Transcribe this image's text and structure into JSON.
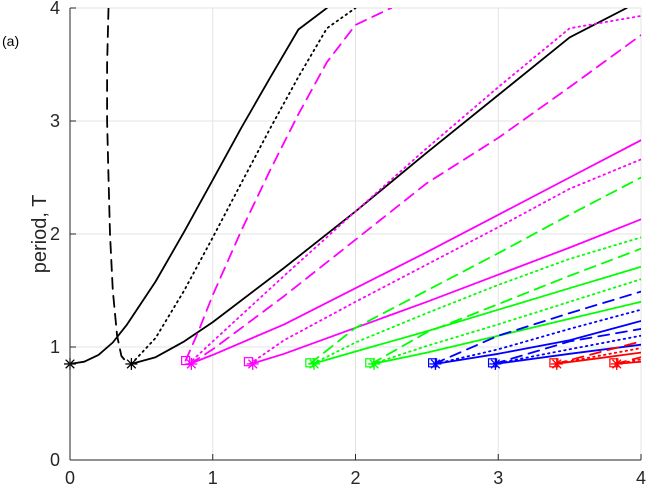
{
  "chart_data": {
    "type": "line",
    "panel_label": "(a)",
    "ylabel": "period, T",
    "xlabel": "",
    "xlim": [
      0,
      4
    ],
    "ylim": [
      0,
      4
    ],
    "x_ticks": [
      0,
      1,
      2,
      3,
      4
    ],
    "y_ticks": [
      0,
      1,
      2,
      3,
      4
    ],
    "grid": true,
    "legend": "none",
    "colors": {
      "black": "#000000",
      "magenta": "#ff00ff",
      "green": "#00ff00",
      "blue": "#0000ff",
      "red": "#ff0000"
    },
    "series": [
      {
        "color": "black",
        "style": "solid",
        "x": [
          0,
          0.1,
          0.2,
          0.3,
          0.4,
          0.6,
          0.8,
          1.0,
          1.2,
          1.4,
          1.6,
          1.8
        ],
        "y": [
          0.85,
          0.87,
          0.93,
          1.04,
          1.2,
          1.58,
          2.02,
          2.48,
          2.94,
          3.38,
          3.81,
          4.0
        ]
      },
      {
        "color": "black",
        "style": "dashed",
        "x": [
          0.27,
          0.26,
          0.26,
          0.27,
          0.28,
          0.3,
          0.33,
          0.36,
          0.4
        ],
        "y": [
          4.0,
          3.5,
          3.0,
          2.5,
          2.0,
          1.5,
          1.1,
          0.92,
          0.86
        ]
      },
      {
        "color": "black",
        "style": "dotted",
        "x": [
          0.43,
          0.6,
          0.8,
          1.0,
          1.2,
          1.4,
          1.6,
          1.8,
          2.0
        ],
        "y": [
          0.85,
          1.08,
          1.5,
          1.97,
          2.45,
          2.93,
          3.39,
          3.82,
          4.0
        ]
      },
      {
        "color": "black",
        "style": "solid",
        "x": [
          0.43,
          0.6,
          0.8,
          1.0,
          1.5,
          2.0,
          2.5,
          3.0,
          3.5,
          3.9
        ],
        "y": [
          0.85,
          0.91,
          1.05,
          1.22,
          1.7,
          2.2,
          2.72,
          3.23,
          3.74,
          4.0
        ]
      },
      {
        "color": "magenta",
        "style": "dashed",
        "x": [
          0.81,
          0.9,
          1.0,
          1.2,
          1.4,
          1.6,
          1.8,
          2.0,
          2.25
        ],
        "y": [
          0.88,
          1.14,
          1.46,
          2.03,
          2.56,
          3.06,
          3.52,
          3.85,
          4.0
        ]
      },
      {
        "color": "magenta",
        "style": "dotted",
        "x": [
          0.83,
          1.0,
          1.5,
          2.0,
          2.5,
          3.0,
          3.5,
          4.0
        ],
        "y": [
          0.85,
          1.05,
          1.63,
          2.2,
          2.76,
          3.3,
          3.82,
          3.93
        ]
      },
      {
        "color": "magenta",
        "style": "dashed",
        "x": [
          0.84,
          1.0,
          1.5,
          2.0,
          2.5,
          3.0,
          3.5,
          4.0
        ],
        "y": [
          0.85,
          0.98,
          1.45,
          1.95,
          2.45,
          2.85,
          3.3,
          3.76
        ]
      },
      {
        "color": "magenta",
        "style": "solid",
        "x": [
          0.84,
          1.0,
          1.5,
          2.0,
          2.5,
          3.0,
          3.5,
          4.0
        ],
        "y": [
          0.85,
          0.93,
          1.2,
          1.52,
          1.84,
          2.17,
          2.5,
          2.83
        ]
      },
      {
        "color": "magenta",
        "style": "dotted",
        "x": [
          1.26,
          1.5,
          2.0,
          2.5,
          3.0,
          3.5,
          4.0
        ],
        "y": [
          0.85,
          1.06,
          1.4,
          1.73,
          2.06,
          2.4,
          2.66
        ]
      },
      {
        "color": "magenta",
        "style": "solid",
        "x": [
          1.27,
          1.5,
          2.0,
          2.5,
          3.0,
          3.5,
          4.0
        ],
        "y": [
          0.85,
          0.94,
          1.17,
          1.4,
          1.64,
          1.88,
          2.13
        ]
      },
      {
        "color": "green",
        "style": "dashed",
        "x": [
          1.68,
          2.0,
          2.5,
          3.0,
          3.5,
          4.0
        ],
        "y": [
          0.85,
          1.17,
          1.5,
          1.83,
          2.17,
          2.5
        ]
      },
      {
        "color": "green",
        "style": "dotted",
        "x": [
          1.7,
          2.0,
          2.5,
          3.0,
          3.5,
          4.0
        ],
        "y": [
          0.85,
          1.04,
          1.3,
          1.55,
          1.78,
          1.97
        ]
      },
      {
        "color": "green",
        "style": "solid",
        "x": [
          1.7,
          2.0,
          2.5,
          3.0,
          3.5,
          4.0
        ],
        "y": [
          0.85,
          0.96,
          1.14,
          1.33,
          1.52,
          1.71
        ]
      },
      {
        "color": "green",
        "style": "dashed",
        "x": [
          2.11,
          2.5,
          3.0,
          3.5,
          4.0
        ],
        "y": [
          0.85,
          1.13,
          1.38,
          1.63,
          1.87
        ]
      },
      {
        "color": "green",
        "style": "dotted",
        "x": [
          2.12,
          2.5,
          3.0,
          3.5,
          4.0
        ],
        "y": [
          0.85,
          1.01,
          1.2,
          1.4,
          1.6
        ]
      },
      {
        "color": "green",
        "style": "solid",
        "x": [
          2.12,
          2.5,
          3.0,
          3.5,
          4.0
        ],
        "y": [
          0.85,
          0.95,
          1.1,
          1.25,
          1.4
        ]
      },
      {
        "color": "blue",
        "style": "dashed",
        "x": [
          2.55,
          3.0,
          3.5,
          4.0
        ],
        "y": [
          0.85,
          1.1,
          1.3,
          1.49
        ]
      },
      {
        "color": "blue",
        "style": "dotted",
        "x": [
          2.56,
          3.0,
          3.5,
          4.0
        ],
        "y": [
          0.85,
          0.98,
          1.16,
          1.33
        ]
      },
      {
        "color": "blue",
        "style": "solid",
        "x": [
          2.56,
          3.0,
          3.5,
          4.0
        ],
        "y": [
          0.85,
          0.94,
          1.06,
          1.23
        ]
      },
      {
        "color": "blue",
        "style": "dashed",
        "x": [
          2.97,
          3.5,
          4.0
        ],
        "y": [
          0.85,
          1.05,
          1.16
        ]
      },
      {
        "color": "blue",
        "style": "dotted",
        "x": [
          2.97,
          3.5,
          4.0
        ],
        "y": [
          0.85,
          0.98,
          1.1
        ]
      },
      {
        "color": "blue",
        "style": "solid",
        "x": [
          2.98,
          3.5,
          4.0
        ],
        "y": [
          0.85,
          0.94,
          1.02
        ]
      },
      {
        "color": "red",
        "style": "dashed",
        "x": [
          3.4,
          3.7,
          4.0
        ],
        "y": [
          0.85,
          0.95,
          1.05
        ]
      },
      {
        "color": "red",
        "style": "dotted",
        "x": [
          3.4,
          3.7,
          4.0
        ],
        "y": [
          0.85,
          0.92,
          0.99
        ]
      },
      {
        "color": "red",
        "style": "solid",
        "x": [
          3.4,
          3.7,
          4.0
        ],
        "y": [
          0.85,
          0.9,
          0.95
        ]
      },
      {
        "color": "red",
        "style": "dashed",
        "x": [
          3.82,
          4.0
        ],
        "y": [
          0.85,
          0.91
        ]
      },
      {
        "color": "red",
        "style": "dotted",
        "x": [
          3.83,
          4.0
        ],
        "y": [
          0.85,
          0.89
        ]
      },
      {
        "color": "red",
        "style": "solid",
        "x": [
          3.83,
          4.0
        ],
        "y": [
          0.85,
          0.87
        ]
      }
    ],
    "star_markers": [
      {
        "color": "black",
        "x": 0.0,
        "y": 0.85
      },
      {
        "color": "black",
        "x": 0.43,
        "y": 0.85
      },
      {
        "color": "magenta",
        "x": 0.85,
        "y": 0.85
      },
      {
        "color": "magenta",
        "x": 1.28,
        "y": 0.85
      },
      {
        "color": "green",
        "x": 1.71,
        "y": 0.85
      },
      {
        "color": "green",
        "x": 2.13,
        "y": 0.85
      },
      {
        "color": "blue",
        "x": 2.56,
        "y": 0.85
      },
      {
        "color": "blue",
        "x": 2.98,
        "y": 0.85
      },
      {
        "color": "red",
        "x": 3.41,
        "y": 0.85
      },
      {
        "color": "red",
        "x": 3.83,
        "y": 0.85
      }
    ],
    "square_markers": [
      {
        "color": "magenta",
        "x": 0.81,
        "y": 0.88
      },
      {
        "color": "magenta",
        "x": 1.25,
        "y": 0.87
      },
      {
        "color": "green",
        "x": 1.68,
        "y": 0.86
      },
      {
        "color": "green",
        "x": 2.1,
        "y": 0.86
      },
      {
        "color": "blue",
        "x": 2.54,
        "y": 0.86
      },
      {
        "color": "blue",
        "x": 2.96,
        "y": 0.86
      },
      {
        "color": "red",
        "x": 3.39,
        "y": 0.86
      },
      {
        "color": "red",
        "x": 3.81,
        "y": 0.86
      }
    ]
  }
}
